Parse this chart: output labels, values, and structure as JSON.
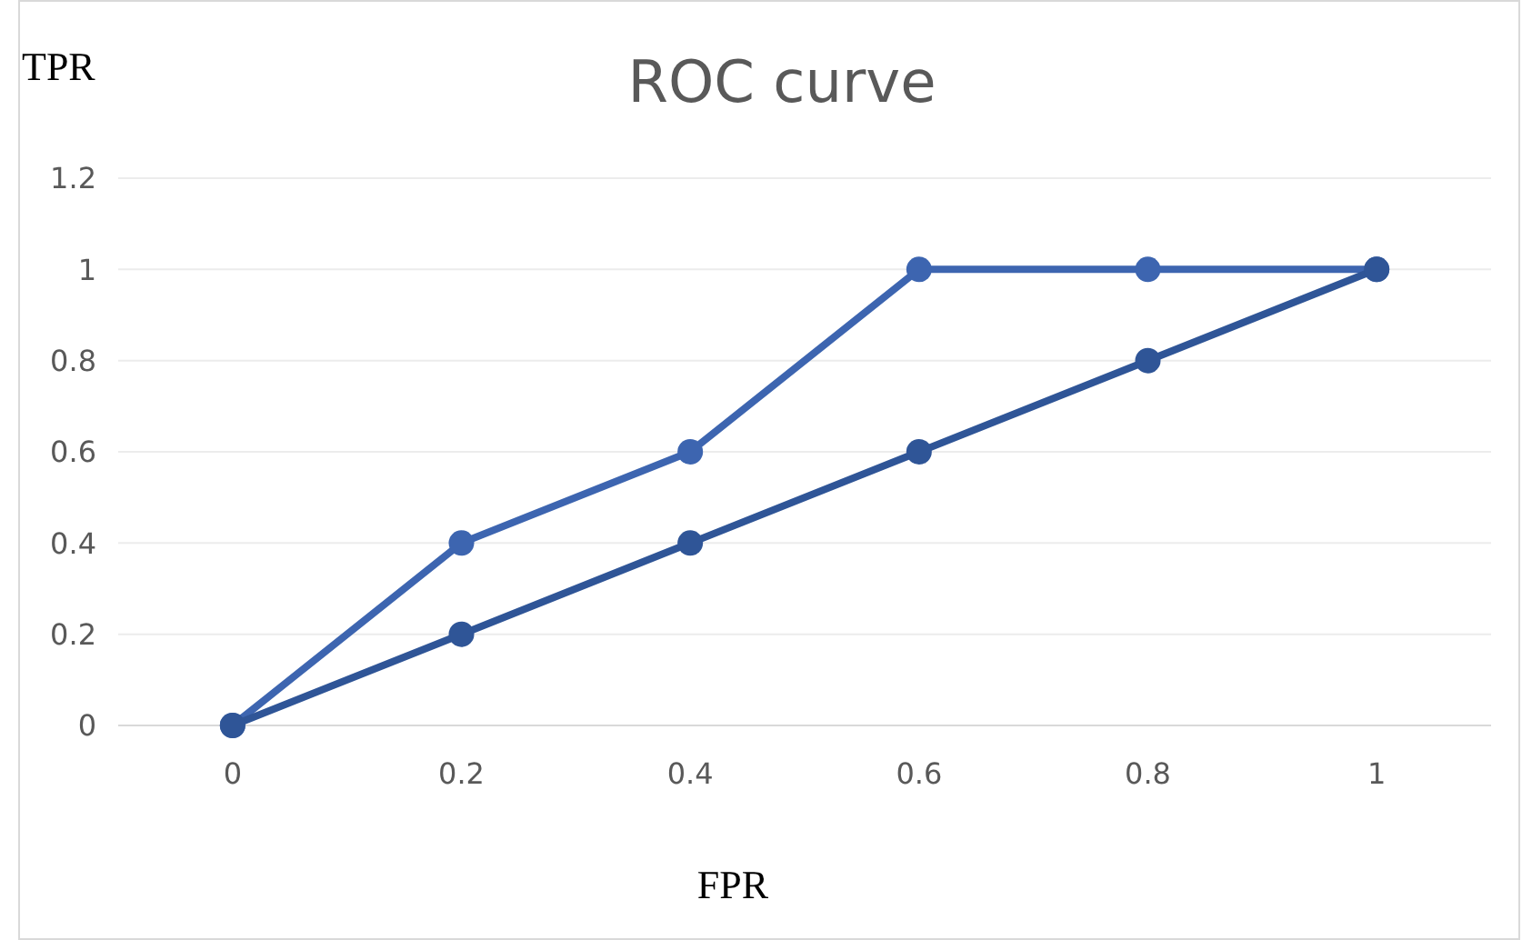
{
  "chart_data": {
    "type": "line",
    "title": "ROC curve",
    "xlabel": "FPR",
    "ylabel": "TPR",
    "categories": [
      "0",
      "0.2",
      "0.4",
      "0.6",
      "0.8",
      "1"
    ],
    "series": [
      {
        "color": "#3d65b0",
        "values": [
          0,
          0.4,
          0.6,
          1,
          1,
          1
        ]
      },
      {
        "color": "#2f5597",
        "values": [
          0,
          0.2,
          0.4,
          0.6,
          0.8,
          1
        ]
      }
    ],
    "ylim": [
      0,
      1.2
    ],
    "yticks": [
      0,
      0.2,
      0.4,
      0.6,
      0.8,
      1,
      1.2
    ],
    "grid": "y",
    "marker": "circle",
    "line_style": "solid"
  }
}
